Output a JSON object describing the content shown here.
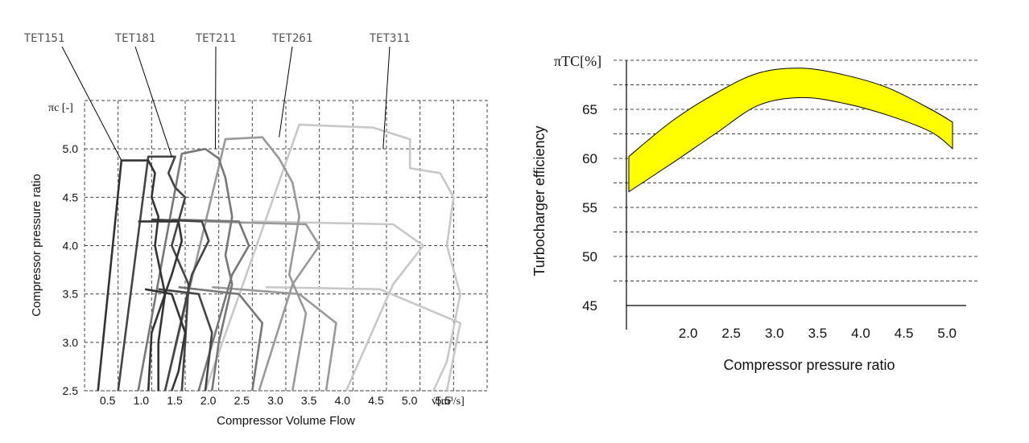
{
  "chart_data": [
    {
      "type": "line",
      "title": "",
      "xlabel": "Compressor Volume Flow",
      "ylabel": "Compressor pressure ratio",
      "x_unit": "v̇[m³/s]",
      "y_unit": "πc [-]",
      "xlim": [
        0,
        6.0
      ],
      "ylim": [
        2.5,
        5.5
      ],
      "grid": true,
      "x_ticks": [
        "0.5",
        "1.0",
        "1.5",
        "2.0",
        "2.5",
        "3.0",
        "3.5",
        "4.0",
        "4.5",
        "5.0",
        "5.5"
      ],
      "y_ticks": [
        "2.5",
        "3.0",
        "3.5",
        "4.0",
        "4.5",
        "5.0"
      ],
      "series": [
        {
          "name": "TET151",
          "color": "#333333",
          "outline": [
            [
              0.2,
              2.5
            ],
            [
              0.55,
              4.88
            ],
            [
              0.95,
              4.88
            ],
            [
              1.05,
              4.75
            ],
            [
              1.0,
              4.5
            ],
            [
              1.1,
              4.3
            ],
            [
              1.05,
              4.0
            ],
            [
              1.2,
              3.5
            ],
            [
              1.1,
              3.0
            ],
            [
              1.1,
              2.5
            ]
          ],
          "speedlines": [
            [
              [
                0.8,
                4.25
              ],
              [
                1.4,
                4.25
              ],
              [
                1.45,
                4.05
              ],
              [
                1.3,
                3.7
              ],
              [
                1.0,
                3.1
              ],
              [
                0.95,
                2.5
              ]
            ],
            [
              [
                0.9,
                3.55
              ],
              [
                1.3,
                3.5
              ],
              [
                1.5,
                3.1
              ],
              [
                1.4,
                2.7
              ],
              [
                1.3,
                2.5
              ]
            ]
          ],
          "pointer_target": [
            0.55,
            4.88
          ]
        },
        {
          "name": "TET181",
          "color": "#444444",
          "outline": [
            [
              0.5,
              2.5
            ],
            [
              0.95,
              4.92
            ],
            [
              1.35,
              4.92
            ],
            [
              1.25,
              4.75
            ],
            [
              1.35,
              4.6
            ],
            [
              1.5,
              4.5
            ],
            [
              1.3,
              4.0
            ],
            [
              1.55,
              3.6
            ],
            [
              1.5,
              3.0
            ],
            [
              1.45,
              2.5
            ]
          ],
          "speedlines": [
            [
              [
                1.0,
                4.27
              ],
              [
                1.75,
                4.25
              ],
              [
                1.85,
                4.05
              ],
              [
                1.6,
                3.7
              ],
              [
                1.2,
                2.5
              ]
            ],
            [
              [
                1.1,
                3.55
              ],
              [
                1.7,
                3.5
              ],
              [
                1.9,
                3.1
              ],
              [
                1.8,
                2.5
              ]
            ]
          ],
          "pointer_target": [
            1.3,
            4.92
          ]
        },
        {
          "name": "TET211",
          "color": "#777777",
          "outline": [
            [
              0.8,
              2.5
            ],
            [
              1.45,
              4.95
            ],
            [
              1.8,
              5.0
            ],
            [
              2.0,
              4.9
            ],
            [
              2.1,
              4.7
            ],
            [
              2.2,
              4.3
            ],
            [
              2.1,
              3.9
            ],
            [
              2.2,
              3.6
            ],
            [
              2.0,
              3.0
            ],
            [
              1.9,
              2.5
            ]
          ],
          "speedlines": [
            [
              [
                1.3,
                4.27
              ],
              [
                2.3,
                4.25
              ],
              [
                2.45,
                4.0
              ],
              [
                2.2,
                3.7
              ],
              [
                1.7,
                2.5
              ]
            ],
            [
              [
                1.4,
                3.57
              ],
              [
                2.3,
                3.5
              ],
              [
                2.65,
                3.2
              ],
              [
                2.5,
                2.5
              ]
            ]
          ],
          "pointer_target": [
            1.95,
            5.0
          ]
        },
        {
          "name": "TET261",
          "color": "#999999",
          "outline": [
            [
              1.2,
              2.5
            ],
            [
              2.1,
              5.1
            ],
            [
              2.65,
              5.12
            ],
            [
              2.9,
              4.9
            ],
            [
              3.1,
              4.65
            ],
            [
              3.2,
              4.3
            ],
            [
              3.05,
              3.7
            ],
            [
              3.3,
              3.3
            ],
            [
              3.1,
              2.5
            ]
          ],
          "speedlines": [
            [
              [
                1.8,
                4.25
              ],
              [
                3.3,
                4.22
              ],
              [
                3.5,
                4.0
              ],
              [
                3.1,
                3.6
              ],
              [
                2.6,
                2.5
              ]
            ],
            [
              [
                1.9,
                3.57
              ],
              [
                3.2,
                3.5
              ],
              [
                3.75,
                3.2
              ],
              [
                3.6,
                2.5
              ]
            ]
          ],
          "pointer_target": [
            2.9,
            5.12
          ]
        },
        {
          "name": "TET311",
          "color": "#c8c8c8",
          "outline": [
            [
              1.8,
              2.5
            ],
            [
              3.2,
              5.25
            ],
            [
              4.3,
              5.22
            ],
            [
              4.85,
              5.1
            ],
            [
              4.85,
              4.8
            ],
            [
              5.3,
              4.75
            ],
            [
              5.5,
              4.5
            ],
            [
              5.4,
              4.0
            ],
            [
              5.6,
              3.5
            ],
            [
              5.4,
              2.8
            ],
            [
              5.2,
              2.5
            ]
          ],
          "speedlines": [
            [
              [
                2.5,
                4.25
              ],
              [
                4.6,
                4.22
              ],
              [
                5.05,
                4.0
              ],
              [
                4.6,
                3.6
              ],
              [
                3.9,
                2.5
              ]
            ],
            [
              [
                2.7,
                3.57
              ],
              [
                4.4,
                3.55
              ],
              [
                5.6,
                3.2
              ],
              [
                5.4,
                2.5
              ]
            ]
          ],
          "pointer_target": [
            4.45,
            5.0
          ]
        }
      ]
    },
    {
      "type": "area",
      "title": "",
      "xlabel": "Compressor pressure ratio",
      "ylabel": "Turbocharger efficiency",
      "y_unit": "πTC[%]",
      "xlim": [
        1.5,
        5.5
      ],
      "ylim": [
        45,
        70
      ],
      "grid": true,
      "x_ticks": [
        "2.0",
        "2.5",
        "3.0",
        "3.5",
        "4.0",
        "4.5",
        "5.0"
      ],
      "y_ticks": [
        "45",
        "50",
        "55",
        "60",
        "65"
      ],
      "fill_color": "#ffff00",
      "band": {
        "x": [
          1.5,
          2.0,
          2.5,
          3.0,
          3.5,
          4.0,
          4.5,
          5.0,
          5.25
        ],
        "upper": [
          60.2,
          63.8,
          66.6,
          68.7,
          69.2,
          68.5,
          67.2,
          65.0,
          63.7
        ],
        "lower": [
          56.6,
          59.5,
          62.5,
          65.4,
          66.2,
          65.6,
          64.4,
          62.7,
          61.0
        ]
      }
    }
  ]
}
